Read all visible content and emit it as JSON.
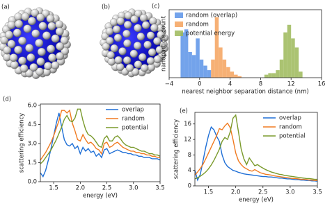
{
  "images": [
    {
      "label": "(a)"
    },
    {
      "label": "(b)"
    }
  ],
  "chart_data": [
    {
      "type": "histogram",
      "label": "(c)",
      "xlabel": "nearest neighbor separation distance (nm)",
      "ylabel": "nanoparticle count",
      "xlim": [
        -4,
        16
      ],
      "xticks": [
        {
          "value": -4,
          "label": "−4"
        },
        0,
        4,
        8,
        12,
        16
      ],
      "ylim": [
        0,
        45
      ],
      "legend": "upper center",
      "series": [
        {
          "name": "random (overlap)",
          "color": "#5b93e8",
          "bins": [
            -2.5,
            -2,
            -1.5,
            -1,
            -0.5,
            0,
            0.5,
            1,
            1.5
          ],
          "values": [
            30,
            32,
            17,
            15,
            26,
            12,
            8,
            5
          ]
        },
        {
          "name": "random",
          "color": "#f5a25d",
          "bins": [
            1.5,
            2,
            2.5,
            3,
            3.5,
            4,
            4.5,
            5,
            5.5
          ],
          "values": [
            12,
            40,
            20,
            12,
            7,
            4,
            2,
            1
          ]
        },
        {
          "name": "potential energy",
          "color": "#9cb859",
          "bins": [
            8.5,
            9,
            9.5,
            10,
            10.5,
            11,
            11.5,
            12,
            12.5,
            13,
            13.5
          ],
          "values": [
            2,
            3,
            3,
            5,
            12,
            30,
            35,
            26,
            20,
            4
          ]
        }
      ]
    },
    {
      "type": "line",
      "label": "(d)",
      "xlabel": "energy (eV)",
      "ylabel": "scattering efficiency",
      "xlim": [
        1.25,
        3.5
      ],
      "xticks": [
        1.5,
        {
          "value": 2,
          "label": "2.0"
        },
        2.5,
        {
          "value": 3,
          "label": "3.0"
        },
        3.5
      ],
      "ylim": [
        0,
        6.1
      ],
      "yticks": [
        {
          "value": 0,
          "label": "0.0"
        },
        1.5,
        {
          "value": 3,
          "label": "3.0"
        },
        4.5,
        {
          "value": 6,
          "label": "6.0"
        }
      ],
      "legend": "upper right",
      "x": [
        1.25,
        1.3,
        1.35,
        1.4,
        1.45,
        1.5,
        1.55,
        1.6,
        1.65,
        1.7,
        1.75,
        1.8,
        1.85,
        1.9,
        1.95,
        2.0,
        2.05,
        2.1,
        2.15,
        2.2,
        2.25,
        2.3,
        2.35,
        2.4,
        2.45,
        2.5,
        2.55,
        2.6,
        2.65,
        2.7,
        2.75,
        2.8,
        2.85,
        2.9,
        2.95,
        3.0,
        3.05,
        3.1,
        3.15,
        3.2,
        3.25,
        3.3,
        3.35,
        3.4,
        3.45,
        3.5
      ],
      "series": [
        {
          "name": "overlap",
          "color": "#1f6fd6",
          "values": [
            0.7,
            0.4,
            0.9,
            1.7,
            2.6,
            3.6,
            4.6,
            5.4,
            4.3,
            3.3,
            2.9,
            2.8,
            3.0,
            2.6,
            2.8,
            2.2,
            2.7,
            2.4,
            2.6,
            2.3,
            2.4,
            2.0,
            2.2,
            1.9,
            2.5,
            2.6,
            2.2,
            2.3,
            2.4,
            2.5,
            2.4,
            2.3,
            2.3,
            2.2,
            2.2,
            2.1,
            2.1,
            2.0,
            2.0,
            1.9,
            1.9,
            1.9,
            1.8,
            1.8,
            1.8,
            1.7
          ]
        },
        {
          "name": "random",
          "color": "#f07a20",
          "values": [
            1.7,
            2.0,
            2.3,
            2.7,
            3.1,
            3.6,
            4.2,
            4.8,
            5.6,
            5.6,
            5.4,
            5.6,
            4.6,
            4.0,
            3.3,
            3.2,
            3.7,
            3.3,
            3.0,
            3.1,
            2.9,
            2.6,
            2.5,
            2.2,
            3.0,
            3.1,
            2.7,
            2.8,
            3.0,
            3.1,
            2.9,
            2.7,
            2.6,
            2.5,
            2.4,
            2.4,
            2.3,
            2.3,
            2.2,
            2.2,
            2.1,
            2.1,
            2.0,
            2.0,
            1.9,
            1.9
          ]
        },
        {
          "name": "potential",
          "color": "#7a9a2b",
          "values": [
            1.4,
            1.6,
            1.9,
            2.2,
            2.5,
            2.9,
            3.3,
            3.8,
            4.3,
            4.9,
            5.2,
            4.8,
            4.7,
            5.0,
            5.7,
            5.7,
            4.8,
            4.1,
            3.7,
            3.6,
            3.4,
            3.1,
            2.8,
            2.7,
            3.4,
            3.6,
            3.2,
            3.2,
            3.5,
            3.6,
            3.4,
            3.1,
            2.9,
            2.8,
            2.7,
            2.7,
            2.6,
            2.5,
            2.4,
            2.4,
            2.3,
            2.2,
            2.2,
            2.1,
            2.1,
            2.0
          ]
        }
      ]
    },
    {
      "type": "line",
      "label": "(e)",
      "xlabel": "energy (eV)",
      "ylabel": "scattering efficiency",
      "xlim": [
        1.25,
        3.5
      ],
      "xticks": [
        1.5,
        {
          "value": 2,
          "label": "2.0"
        },
        2.5,
        {
          "value": 3,
          "label": "3.0"
        },
        3.5
      ],
      "ylim": [
        0,
        19
      ],
      "yticks": [
        0,
        4,
        8,
        12,
        16
      ],
      "legend": "upper right",
      "x": [
        1.25,
        1.3,
        1.35,
        1.4,
        1.45,
        1.5,
        1.55,
        1.6,
        1.65,
        1.7,
        1.75,
        1.8,
        1.85,
        1.9,
        1.95,
        2.0,
        2.05,
        2.1,
        2.15,
        2.2,
        2.25,
        2.3,
        2.35,
        2.4,
        2.45,
        2.5,
        2.55,
        2.6,
        2.65,
        2.7,
        2.75,
        2.8,
        2.85,
        2.9,
        2.95,
        3.0,
        3.05,
        3.1,
        3.15,
        3.2,
        3.25,
        3.3,
        3.35,
        3.4,
        3.45,
        3.5
      ],
      "series": [
        {
          "name": "overlap",
          "color": "#1f6fd6",
          "values": [
            4.0,
            1.5,
            3.0,
            6.5,
            10.0,
            13.0,
            15.2,
            14.5,
            12.8,
            11.5,
            8.0,
            6.0,
            5.0,
            4.5,
            4.0,
            3.8,
            3.5,
            3.3,
            3.1,
            3.0,
            2.9,
            2.8,
            2.7,
            2.6,
            2.5,
            2.4,
            2.4,
            2.3,
            2.3,
            2.2,
            2.1,
            2.0,
            2.0,
            1.9,
            1.8,
            1.8,
            1.7,
            1.6,
            1.6,
            1.5,
            1.5,
            1.4,
            1.4,
            1.3,
            1.3,
            1.2
          ]
        },
        {
          "name": "random",
          "color": "#f07a20",
          "values": [
            2.8,
            3.6,
            4.5,
            5.6,
            7.0,
            8.5,
            10.0,
            11.5,
            13.0,
            14.8,
            14.5,
            15.5,
            16.2,
            15.0,
            12.0,
            8.5,
            6.5,
            5.5,
            4.8,
            4.4,
            4.0,
            3.8,
            4.2,
            3.8,
            3.4,
            3.2,
            3.0,
            2.9,
            2.8,
            2.6,
            2.5,
            2.4,
            2.3,
            2.2,
            2.1,
            2.0,
            1.9,
            1.9,
            1.8,
            1.7,
            1.7,
            1.6,
            1.5,
            1.5,
            1.4,
            1.4
          ]
        },
        {
          "name": "potential",
          "color": "#7a9a2b",
          "values": [
            1.8,
            2.1,
            2.5,
            3.0,
            3.6,
            4.4,
            5.4,
            6.6,
            8.0,
            9.5,
            11.5,
            12.5,
            12.0,
            14.0,
            17.5,
            18.3,
            14.0,
            9.5,
            7.0,
            5.5,
            7.2,
            6.2,
            5.2,
            5.5,
            5.0,
            4.6,
            4.2,
            3.9,
            3.6,
            3.4,
            3.2,
            3.0,
            2.9,
            2.7,
            2.6,
            2.5,
            2.4,
            2.3,
            2.2,
            2.1,
            2.0,
            1.9,
            1.9,
            1.8,
            1.7,
            1.7
          ]
        }
      ]
    }
  ]
}
